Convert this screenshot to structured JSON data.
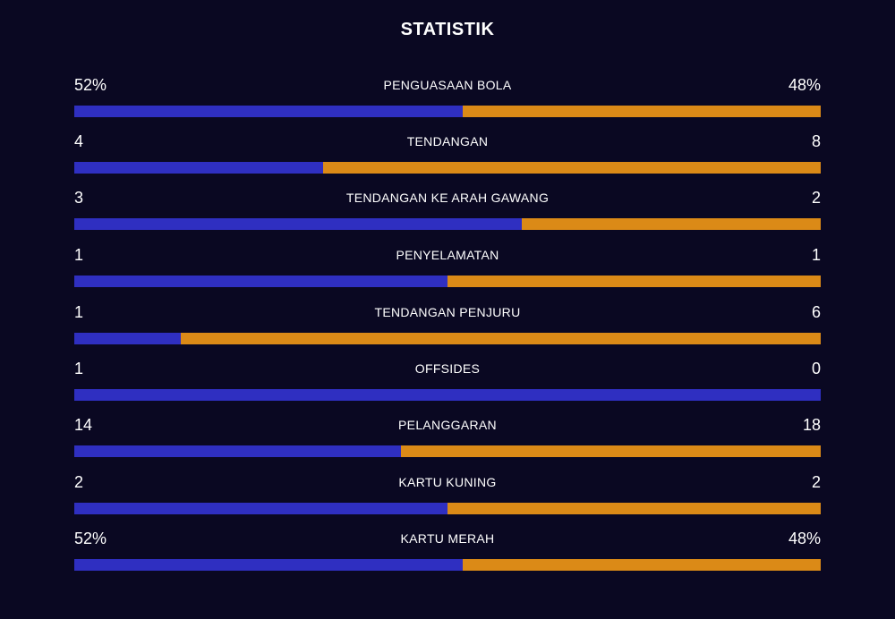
{
  "title": "STATISTIK",
  "colors": {
    "background": "#0a0822",
    "home": "#2f2fc1",
    "away": "#db8a17"
  },
  "stats": [
    {
      "label": "PENGUASAAN BOLA",
      "left": "52%",
      "right": "48%",
      "left_share": 0.52
    },
    {
      "label": "TENDANGAN",
      "left": "4",
      "right": "8",
      "left_share": 0.333
    },
    {
      "label": "TENDANGAN KE ARAH GAWANG",
      "left": "3",
      "right": "2",
      "left_share": 0.6
    },
    {
      "label": "PENYELAMATAN",
      "left": "1",
      "right": "1",
      "left_share": 0.5
    },
    {
      "label": "TENDANGAN PENJURU",
      "left": "1",
      "right": "6",
      "left_share": 0.143
    },
    {
      "label": "OFFSIDES",
      "left": "1",
      "right": "0",
      "left_share": 1.0
    },
    {
      "label": "PELANGGARAN",
      "left": "14",
      "right": "18",
      "left_share": 0.4375
    },
    {
      "label": "KARTU KUNING",
      "left": "2",
      "right": "2",
      "left_share": 0.5
    },
    {
      "label": "KARTU MERAH",
      "left": "52%",
      "right": "48%",
      "left_share": 0.52
    }
  ]
}
